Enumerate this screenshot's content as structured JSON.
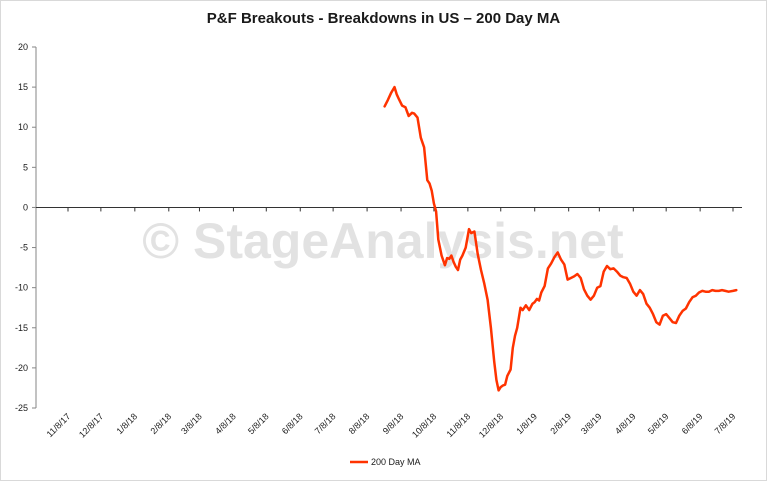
{
  "chart_data": {
    "type": "line",
    "title": "P&F Breakouts - Breakdowns in US – 200 Day MA",
    "watermark": "© StageAnalysis.net",
    "xlabel": "",
    "ylabel": "",
    "ylim": [
      -25,
      20
    ],
    "yticks": [
      20,
      15,
      10,
      5,
      0,
      -5,
      -10,
      -15,
      -20,
      -25
    ],
    "xlim": [
      "2017-11-08",
      "2019-07-08"
    ],
    "x_tick_labels": [
      "11/8/17",
      "12/8/17",
      "1/8/18",
      "2/8/18",
      "3/8/18",
      "4/8/18",
      "5/8/18",
      "6/8/18",
      "7/8/18",
      "8/8/18",
      "9/8/18",
      "10/8/18",
      "11/8/18",
      "12/8/18",
      "1/8/19",
      "2/8/19",
      "3/8/19",
      "4/8/19",
      "5/8/19",
      "6/8/19",
      "7/8/19"
    ],
    "x_tick_dates": [
      "2017-11-08",
      "2017-12-08",
      "2018-01-08",
      "2018-02-08",
      "2018-03-08",
      "2018-04-08",
      "2018-05-08",
      "2018-06-08",
      "2018-07-08",
      "2018-08-08",
      "2018-09-08",
      "2018-10-08",
      "2018-11-08",
      "2018-12-08",
      "2019-01-08",
      "2019-02-08",
      "2019-03-08",
      "2019-04-08",
      "2019-05-08",
      "2019-06-08",
      "2019-07-08"
    ],
    "grid": false,
    "legend_position": "bottom",
    "series": [
      {
        "name": "200 Day MA",
        "color": "#ff3300",
        "x": [
          "2018-08-24",
          "2018-08-27",
          "2018-08-30",
          "2018-09-02",
          "2018-09-04",
          "2018-09-06",
          "2018-09-09",
          "2018-09-12",
          "2018-09-15",
          "2018-09-18",
          "2018-09-20",
          "2018-09-23",
          "2018-09-26",
          "2018-09-29",
          "2018-10-02",
          "2018-10-04",
          "2018-10-06",
          "2018-10-08",
          "2018-10-10",
          "2018-10-12",
          "2018-10-15",
          "2018-10-18",
          "2018-10-20",
          "2018-10-22",
          "2018-10-24",
          "2018-10-26",
          "2018-10-28",
          "2018-10-30",
          "2018-11-01",
          "2018-11-03",
          "2018-11-06",
          "2018-11-09",
          "2018-11-11",
          "2018-11-14",
          "2018-11-17",
          "2018-11-20",
          "2018-11-23",
          "2018-11-26",
          "2018-11-29",
          "2018-12-02",
          "2018-12-04",
          "2018-12-06",
          "2018-12-08",
          "2018-12-10",
          "2018-12-12",
          "2018-12-14",
          "2018-12-17",
          "2018-12-19",
          "2018-12-21",
          "2018-12-23",
          "2018-12-26",
          "2018-12-28",
          "2018-12-31",
          "2019-01-03",
          "2019-01-06",
          "2019-01-08",
          "2019-01-10",
          "2019-01-12",
          "2019-01-14",
          "2019-01-17",
          "2019-01-20",
          "2019-01-23",
          "2019-01-26",
          "2019-01-29",
          "2019-02-01",
          "2019-02-04",
          "2019-02-07",
          "2019-02-10",
          "2019-02-13",
          "2019-02-16",
          "2019-02-19",
          "2019-02-22",
          "2019-02-25",
          "2019-02-28",
          "2019-03-03",
          "2019-03-06",
          "2019-03-09",
          "2019-03-12",
          "2019-03-15",
          "2019-03-18",
          "2019-03-21",
          "2019-03-24",
          "2019-03-27",
          "2019-03-30",
          "2019-04-02",
          "2019-04-05",
          "2019-04-08",
          "2019-04-11",
          "2019-04-14",
          "2019-04-17",
          "2019-04-20",
          "2019-04-23",
          "2019-04-26",
          "2019-04-29",
          "2019-05-02",
          "2019-05-05",
          "2019-05-08",
          "2019-05-11",
          "2019-05-14",
          "2019-05-17",
          "2019-05-20",
          "2019-05-23",
          "2019-05-26",
          "2019-05-29",
          "2019-06-01",
          "2019-06-04",
          "2019-06-07",
          "2019-06-10",
          "2019-06-13",
          "2019-06-16",
          "2019-06-19",
          "2019-06-22",
          "2019-06-25",
          "2019-06-28",
          "2019-07-01",
          "2019-07-04",
          "2019-07-08",
          "2019-07-11"
        ],
        "values": [
          12.6,
          13.4,
          14.3,
          15.0,
          14.1,
          13.5,
          12.7,
          12.5,
          11.4,
          11.8,
          11.7,
          11.2,
          8.7,
          7.5,
          3.4,
          3.0,
          2.1,
          0.5,
          -0.5,
          -4.0,
          -6.0,
          -7.2,
          -6.3,
          -6.4,
          -6.0,
          -6.8,
          -7.4,
          -7.8,
          -6.5,
          -6.0,
          -5.0,
          -2.7,
          -3.2,
          -3.0,
          -5.8,
          -7.8,
          -9.5,
          -11.5,
          -15.0,
          -19.2,
          -21.5,
          -22.8,
          -22.4,
          -22.2,
          -22.1,
          -21.0,
          -20.2,
          -17.5,
          -16.0,
          -15.0,
          -12.5,
          -12.8,
          -12.2,
          -12.8,
          -12.0,
          -11.8,
          -11.4,
          -11.6,
          -10.6,
          -9.8,
          -7.6,
          -7.0,
          -6.2,
          -5.6,
          -6.5,
          -7.1,
          -9.0,
          -8.8,
          -8.6,
          -8.3,
          -8.8,
          -10.2,
          -11.0,
          -11.5,
          -11.0,
          -10.0,
          -9.8,
          -8.0,
          -7.3,
          -7.7,
          -7.6,
          -8.0,
          -8.5,
          -8.7,
          -8.8,
          -9.5,
          -10.5,
          -11.0,
          -10.3,
          -10.8,
          -12.0,
          -12.5,
          -13.3,
          -14.3,
          -14.6,
          -13.5,
          -13.3,
          -13.8,
          -14.3,
          -14.4,
          -13.5,
          -12.9,
          -12.6,
          -11.8,
          -11.2,
          -11.0,
          -10.6,
          -10.4,
          -10.5,
          -10.5,
          -10.3,
          -10.4,
          -10.4,
          -10.3,
          -10.4,
          -10.5,
          -10.4,
          -10.3
        ]
      }
    ]
  }
}
